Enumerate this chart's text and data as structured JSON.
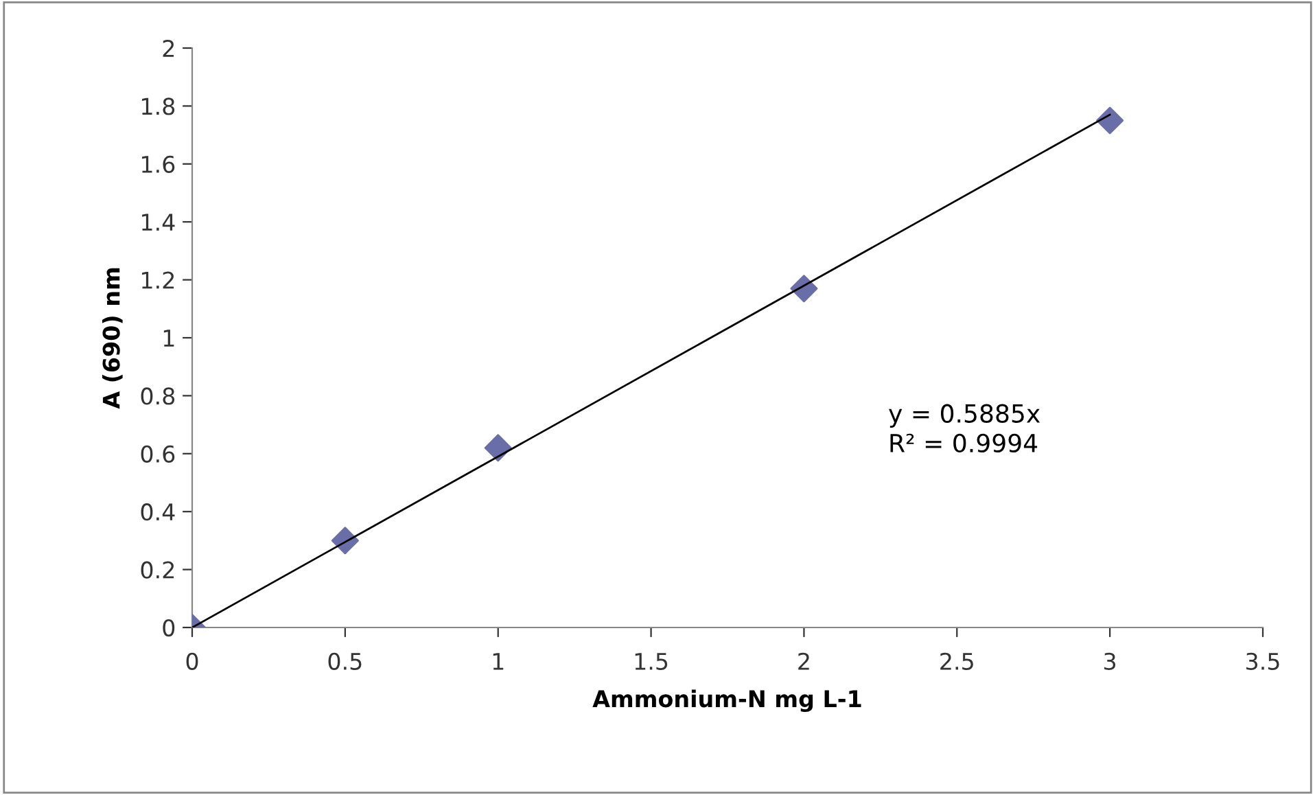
{
  "chart_data": {
    "type": "scatter",
    "xlabel": "Ammonium-N mg L-1",
    "ylabel": "A (690) nm",
    "xlim": [
      0,
      3.5
    ],
    "xticks": [
      0,
      0.5,
      1,
      1.5,
      2,
      2.5,
      3,
      3.5
    ],
    "ylim": [
      0,
      2
    ],
    "yticks": [
      0,
      0.2,
      0.4,
      0.6,
      0.8,
      1,
      1.2,
      1.4,
      1.6,
      1.8,
      2
    ],
    "grid": false,
    "legend": false,
    "marker": "diamond",
    "series": [
      {
        "color": "#6a6ea8",
        "x": [
          0,
          0.5,
          1,
          2,
          3
        ],
        "values": [
          0,
          0.3,
          0.62,
          1.17,
          1.75
        ]
      },
      {
        "type": "line",
        "color": "#000000",
        "marker": "none",
        "line_style": "solid",
        "x": [
          0,
          3
        ],
        "values": [
          0,
          1.77
        ]
      }
    ],
    "annotations": [
      "y = 0.5885x\nR² = 0.9994"
    ]
  }
}
